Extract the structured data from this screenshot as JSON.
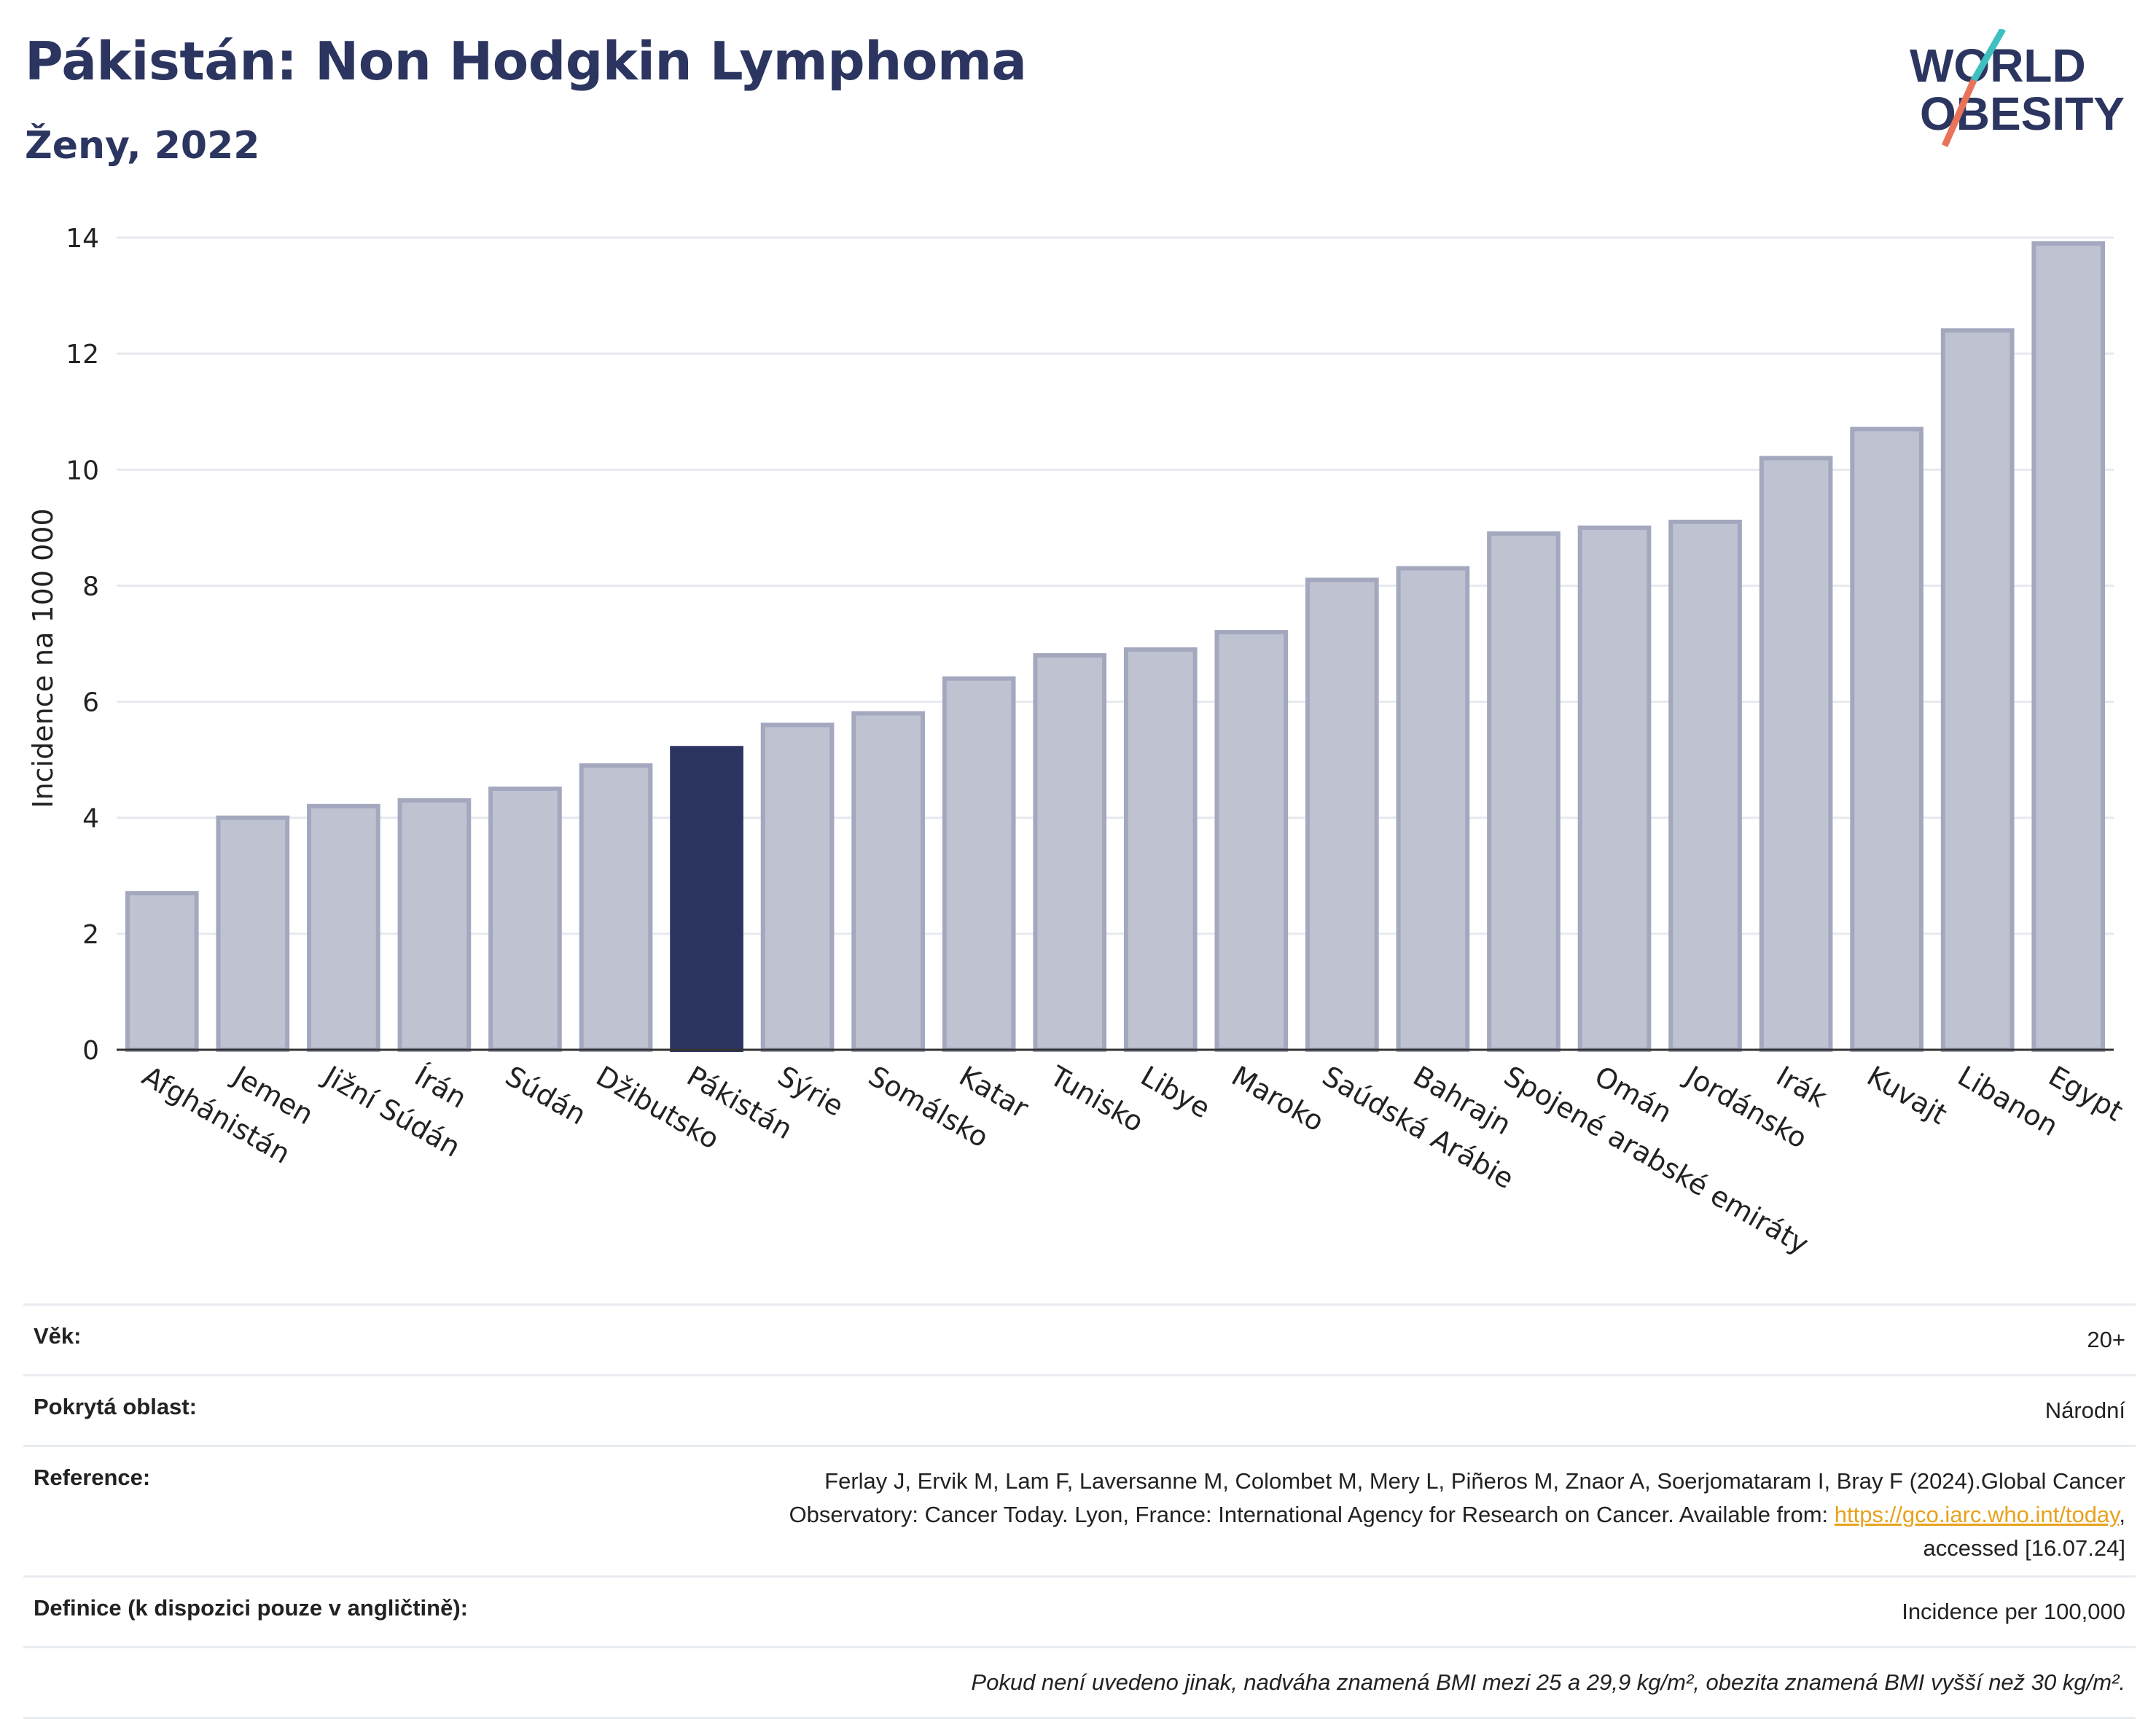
{
  "header": {
    "title": "Pákistán: Non Hodgkin Lymphoma",
    "subtitle": "Ženy, 2022"
  },
  "logo": {
    "line1": "WORLD",
    "line2": "OBESITY"
  },
  "colors": {
    "bar": "#bfc2d1",
    "bar_border": "#a3a8bf",
    "highlight": "#2b3560",
    "grid": "#e6e9ef",
    "title": "#2b3560",
    "logo_slash_teal": "#3ec0c0",
    "logo_slash_red": "#e8735a"
  },
  "chart_data": {
    "type": "bar",
    "title": "Pákistán: Non Hodgkin Lymphoma",
    "subtitle": "Ženy, 2022",
    "ylabel": "Incidence na 100 000",
    "xlabel": "",
    "ylim": [
      0,
      14
    ],
    "yticks": [
      0,
      2,
      4,
      6,
      8,
      10,
      12,
      14
    ],
    "grid": true,
    "highlight": "Pákistán",
    "categories": [
      "Afghánistán",
      "Jemen",
      "Jižní Súdán",
      "Írán",
      "Súdán",
      "Džibutsko",
      "Pákistán",
      "Sýrie",
      "Somálsko",
      "Katar",
      "Tunisko",
      "Libye",
      "Maroko",
      "Saúdská Arábie",
      "Bahrajn",
      "Spojené arabské emiráty",
      "Omán",
      "Jordánsko",
      "Irák",
      "Kuvajt",
      "Libanon",
      "Egypt"
    ],
    "values": [
      2.7,
      4.0,
      4.2,
      4.3,
      4.5,
      4.9,
      5.2,
      5.6,
      5.8,
      6.4,
      6.8,
      6.9,
      7.2,
      8.1,
      8.3,
      8.9,
      9.0,
      9.1,
      10.2,
      10.7,
      12.4,
      13.9
    ]
  },
  "info": {
    "age_label": "Věk:",
    "age_value": "20+",
    "area_label": "Pokrytá oblast:",
    "area_value": "Národní",
    "ref_label": "Reference:",
    "ref_line1": "Ferlay J, Ervik M, Lam F, Laversanne M, Colombet M, Mery L, Piñeros M, Znaor A, Soerjomataram I, Bray F (2024).Global Cancer",
    "ref_line2": "Observatory: Cancer Today. Lyon, France: International Agency for Research on Cancer. Available from: ",
    "ref_link": "https://gco.iarc.who.int/today",
    "ref_line3": "accessed [16.07.24]",
    "def_label": "Definice (k dispozici pouze v angličtině):",
    "def_value": "Incidence per 100,000",
    "note": "Pokud není uvedeno jinak, nadváha znamená BMI mezi 25 a 29,9 kg/m², obezita znamená BMI vyšší než 30 kg/m²."
  }
}
